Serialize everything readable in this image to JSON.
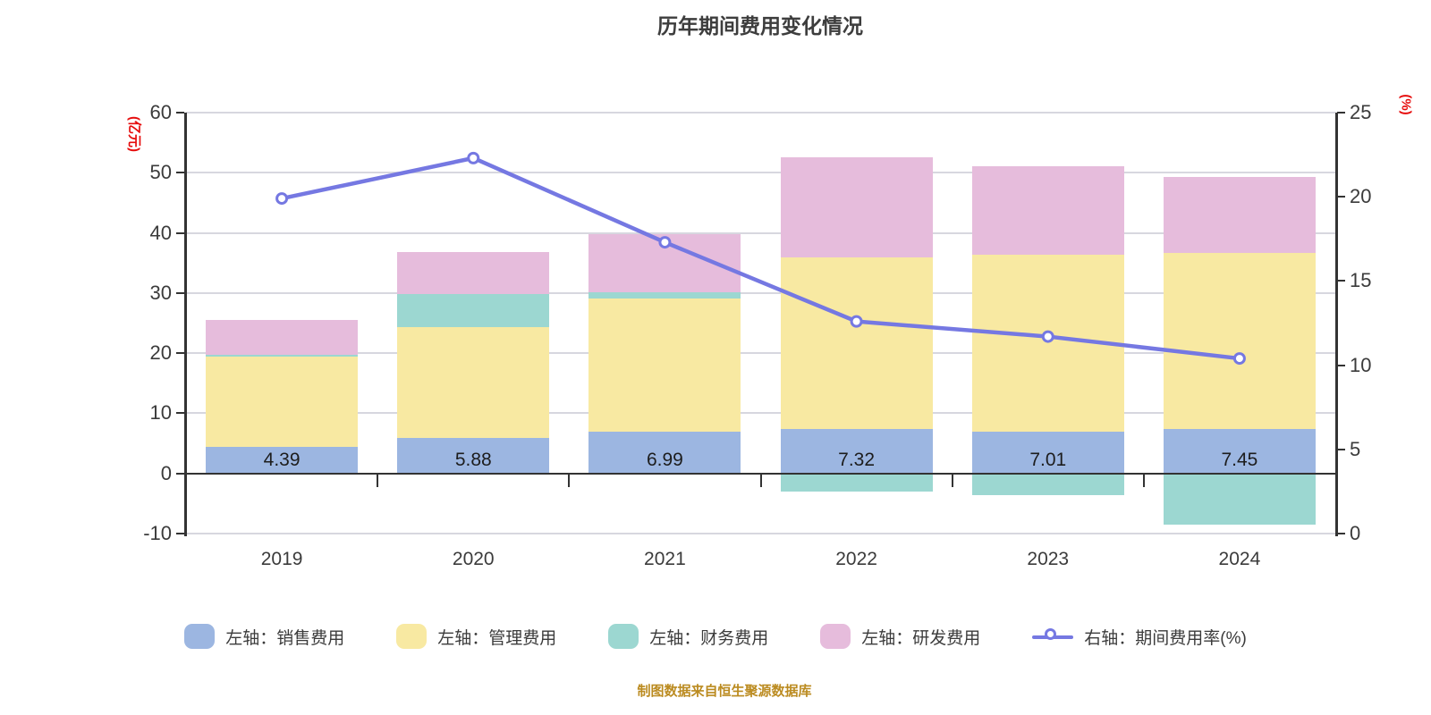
{
  "title": "历年期间费用变化情况",
  "footer": "制图数据来自恒生聚源数据库",
  "colors": {
    "sales": "#9cb6e1",
    "admin": "#f8e9a2",
    "finance": "#9cd7d1",
    "rnd": "#e6bcdc",
    "line": "#7578e2",
    "marker_fill": "#ffffff",
    "grid": "#d7d7df",
    "axis": "#333333",
    "text": "#3b3b3b",
    "axis_name": "#e60c0c",
    "footer": "#bb8b20"
  },
  "chart_data": {
    "type": "bar",
    "subtype": "stacked-bar-with-line",
    "categories": [
      "2019",
      "2020",
      "2021",
      "2022",
      "2023",
      "2024"
    ],
    "series": [
      {
        "name": "左轴：销售费用",
        "type": "bar",
        "axis": "left",
        "color_key": "sales",
        "values": [
          4.39,
          5.88,
          6.99,
          7.32,
          7.01,
          7.45
        ],
        "show_labels": true
      },
      {
        "name": "左轴：管理费用",
        "type": "bar",
        "axis": "left",
        "color_key": "admin",
        "values": [
          15.0,
          18.5,
          22.1,
          28.6,
          29.4,
          29.2
        ]
      },
      {
        "name": "左轴：财务费用",
        "type": "bar",
        "axis": "left",
        "color_key": "finance",
        "values": [
          0.3,
          5.4,
          1.0,
          -3.0,
          -3.6,
          -8.5
        ]
      },
      {
        "name": "左轴：研发费用",
        "type": "bar",
        "axis": "left",
        "color_key": "rnd",
        "values": [
          5.8,
          7.1,
          9.7,
          16.7,
          14.6,
          12.7
        ]
      },
      {
        "name": "右轴：期间费用率(%)",
        "type": "line",
        "axis": "right",
        "color_key": "line",
        "values": [
          19.9,
          22.3,
          17.3,
          12.6,
          11.7,
          10.4
        ]
      }
    ],
    "bar_value_labels": [
      "4.39",
      "5.88",
      "6.99",
      "7.32",
      "7.01",
      "7.45"
    ],
    "left_axis": {
      "name": "(亿元)",
      "min": -10,
      "max": 60,
      "ticks": [
        60,
        50,
        40,
        30,
        20,
        10,
        0,
        -10
      ]
    },
    "right_axis": {
      "name": "(%)",
      "min": 0,
      "max": 25,
      "ticks": [
        25,
        20,
        15,
        10,
        5,
        0
      ]
    },
    "grid": true,
    "legend_position": "bottom"
  }
}
